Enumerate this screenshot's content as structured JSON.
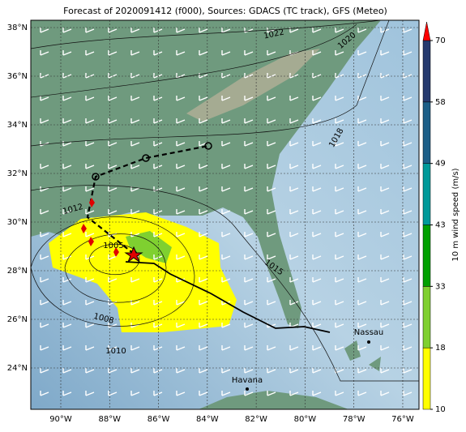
{
  "title": "Forecast of 2020091412 (f000), Sources: GDACS (TC track), GFS (Meteo)",
  "map": {
    "lat_ticks": [
      {
        "value": 24,
        "label": "24°N"
      },
      {
        "value": 26,
        "label": "26°N"
      },
      {
        "value": 28,
        "label": "28°N"
      },
      {
        "value": 30,
        "label": "30°N"
      },
      {
        "value": 32,
        "label": "32°N"
      },
      {
        "value": 34,
        "label": "34°N"
      },
      {
        "value": 36,
        "label": "36°N"
      },
      {
        "value": 38,
        "label": "38°N"
      }
    ],
    "lon_ticks": [
      {
        "value": -90,
        "label": "90°W"
      },
      {
        "value": -88,
        "label": "88°W"
      },
      {
        "value": -86,
        "label": "86°W"
      },
      {
        "value": -84,
        "label": "84°W"
      },
      {
        "value": -82,
        "label": "82°W"
      },
      {
        "value": -80,
        "label": "80°W"
      },
      {
        "value": -78,
        "label": "78°W"
      },
      {
        "value": -76,
        "label": "76°W"
      }
    ],
    "isobar_labels": [
      "1022",
      "1020",
      "1018",
      "1015",
      "1012",
      "1008",
      "1010",
      "1005"
    ],
    "places": [
      "Havana",
      "Nassau"
    ]
  },
  "colorbar": {
    "label": "10 m wind speed (m/s)",
    "ticks": [
      10,
      18,
      33,
      43,
      49,
      58,
      70
    ],
    "colors": [
      "#ffff00",
      "#80d030",
      "#00a000",
      "#009a9a",
      "#1d5f88",
      "#263a6e"
    ],
    "over_color": "#ff0000"
  }
}
